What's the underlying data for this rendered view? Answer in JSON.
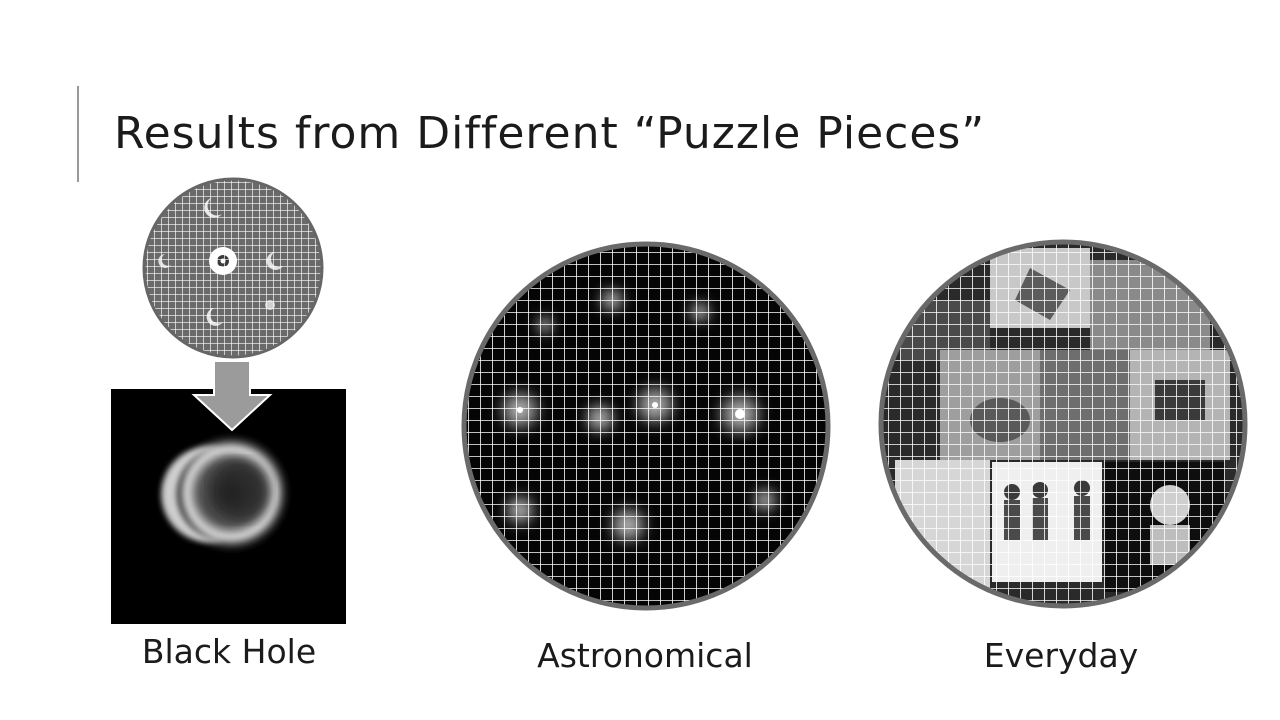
{
  "slide": {
    "title": "Results from Different “Puzzle Pieces”",
    "panels": [
      {
        "caption": "Black Hole"
      },
      {
        "caption": "Astronomical"
      },
      {
        "caption": "Everyday"
      }
    ]
  }
}
